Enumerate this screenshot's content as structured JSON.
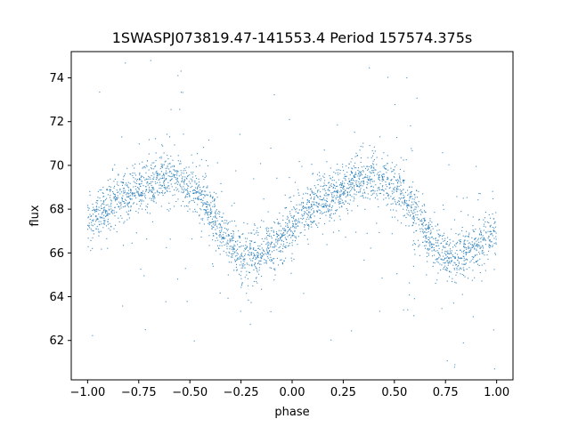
{
  "chart_data": {
    "type": "scatter",
    "title": "1SWASPJ073819.47-141553.4 Period 157574.375s",
    "xlabel": "phase",
    "ylabel": "flux",
    "xlim": [
      -1.08,
      1.08
    ],
    "ylim": [
      60.2,
      75.2
    ],
    "xticks": [
      -1.0,
      -0.75,
      -0.5,
      -0.25,
      0.0,
      0.25,
      0.5,
      0.75,
      1.0
    ],
    "xtick_labels": [
      "−1.00",
      "−0.75",
      "−0.50",
      "−0.25",
      "0.00",
      "0.25",
      "0.50",
      "0.75",
      "1.00"
    ],
    "yticks": [
      62,
      64,
      66,
      68,
      70,
      72,
      74
    ],
    "ytick_labels": [
      "62",
      "64",
      "66",
      "68",
      "70",
      "72",
      "74"
    ],
    "grid": false,
    "legend": "none",
    "marker_color": "#1f77b4",
    "series": [
      {
        "x": [
          -1.0,
          -0.95,
          -0.9,
          -0.85,
          -0.8,
          -0.75,
          -0.7,
          -0.65,
          -0.6,
          -0.55,
          -0.5,
          -0.45,
          -0.4,
          -0.35,
          -0.3,
          -0.25,
          -0.2,
          -0.15,
          -0.1,
          -0.05,
          0.0,
          0.05,
          0.1,
          0.15,
          0.2,
          0.25,
          0.3,
          0.35,
          0.4,
          0.45,
          0.5,
          0.55,
          0.6,
          0.65,
          0.7,
          0.75,
          0.8,
          0.85,
          0.9,
          0.95,
          1.0
        ],
        "y": [
          67.3,
          67.8,
          68.1,
          68.4,
          68.7,
          68.9,
          69.2,
          69.4,
          69.5,
          69.3,
          69.0,
          68.6,
          67.9,
          67.1,
          66.3,
          65.8,
          65.9,
          66.0,
          66.3,
          66.8,
          67.3,
          67.8,
          68.1,
          68.4,
          68.7,
          68.9,
          69.2,
          69.4,
          69.5,
          69.3,
          69.0,
          68.6,
          67.9,
          67.1,
          66.3,
          65.8,
          65.9,
          66.0,
          66.3,
          66.6,
          66.9
        ]
      }
    ]
  }
}
